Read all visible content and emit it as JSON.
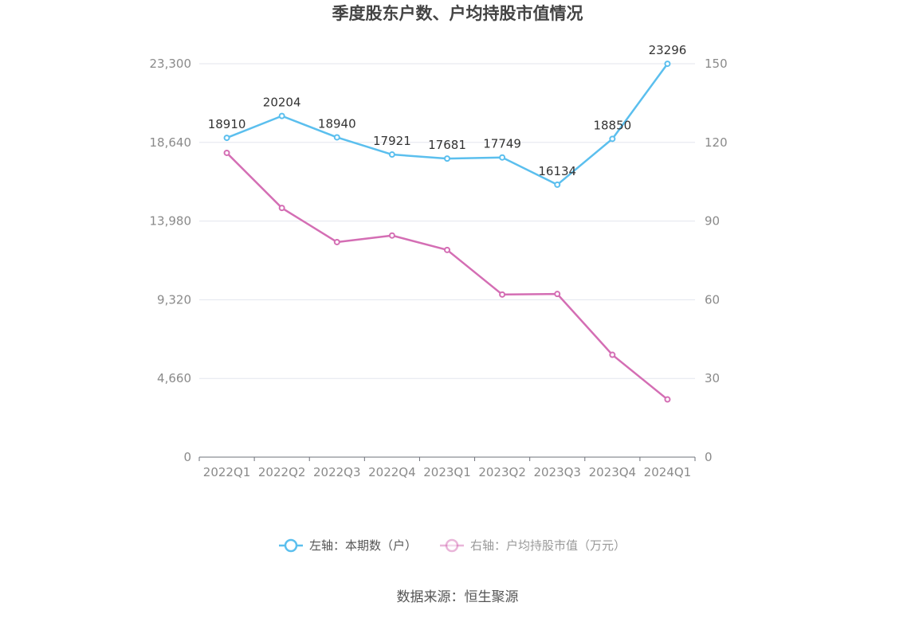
{
  "chart_data": {
    "type": "line",
    "title": "季度股东户数、户均持股市值情况",
    "categories": [
      "2022Q1",
      "2022Q2",
      "2022Q3",
      "2022Q4",
      "2023Q1",
      "2023Q2",
      "2023Q3",
      "2023Q4",
      "2024Q1"
    ],
    "left_axis": {
      "range": [
        0,
        23300
      ],
      "ticks": [
        "0",
        "4,660",
        "9,320",
        "13,980",
        "18,640",
        "23,300"
      ]
    },
    "right_axis": {
      "range": [
        0,
        150
      ],
      "ticks": [
        "0",
        "30",
        "60",
        "90",
        "120",
        "150"
      ]
    },
    "series": [
      {
        "name": "左轴：本期数（户）",
        "axis": "left",
        "color": "#5bbfee",
        "values": [
          18910,
          20204,
          18940,
          17921,
          17681,
          17749,
          16134,
          18850,
          23296
        ],
        "labels": [
          "18910",
          "20204",
          "18940",
          "17921",
          "17681",
          "17749",
          "16134",
          "18850",
          "23296"
        ]
      },
      {
        "name": "右轴：户均持股市值（万元）",
        "axis": "right",
        "color": "#d46eb4",
        "values": [
          116,
          95,
          82,
          84.5,
          79,
          62,
          62.2,
          39,
          22
        ]
      }
    ],
    "grid": true,
    "legend_position": "bottom-center",
    "source": "数据来源：恒生聚源"
  }
}
